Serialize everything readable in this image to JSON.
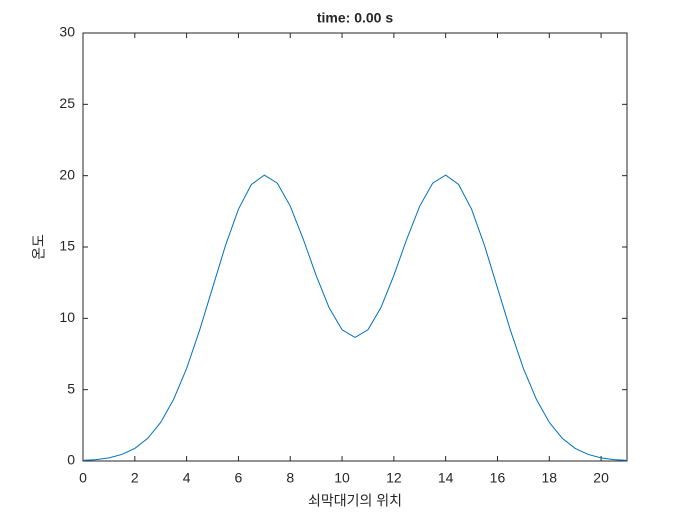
{
  "chart_data": {
    "type": "line",
    "title": "time: 0.00 s",
    "xlabel": "쇠막대기의 위치",
    "ylabel": "온도",
    "x": [
      0,
      0.5,
      1,
      1.5,
      2,
      2.5,
      3,
      3.5,
      4,
      4.5,
      5,
      5.5,
      6,
      6.5,
      7,
      7.5,
      8,
      8.5,
      9,
      9.5,
      10,
      10.5,
      11,
      11.5,
      12,
      12.5,
      13,
      13.5,
      14,
      14.5,
      15,
      15.5,
      16,
      16.5,
      17,
      17.5,
      18,
      18.5,
      19,
      19.5,
      20,
      20.5,
      21
    ],
    "series": [
      {
        "color": "#0072bd",
        "values": [
          0.04,
          0.1,
          0.22,
          0.46,
          0.88,
          1.59,
          2.71,
          4.33,
          6.49,
          9.16,
          12.13,
          15.1,
          17.65,
          19.38,
          20.04,
          19.48,
          17.87,
          15.56,
          13.01,
          10.75,
          9.2,
          8.66,
          9.2,
          10.75,
          13.01,
          15.56,
          17.87,
          19.48,
          20.04,
          19.38,
          17.65,
          15.1,
          12.13,
          9.16,
          6.49,
          4.33,
          2.71,
          1.59,
          0.88,
          0.46,
          0.22,
          0.1,
          0.04
        ]
      }
    ],
    "xlim": [
      0,
      21
    ],
    "xticks": [
      0,
      2,
      4,
      6,
      8,
      10,
      12,
      14,
      16,
      18,
      20
    ],
    "ylim": [
      0,
      30
    ],
    "yticks": [
      0,
      5,
      10,
      15,
      20,
      25,
      30
    ]
  }
}
